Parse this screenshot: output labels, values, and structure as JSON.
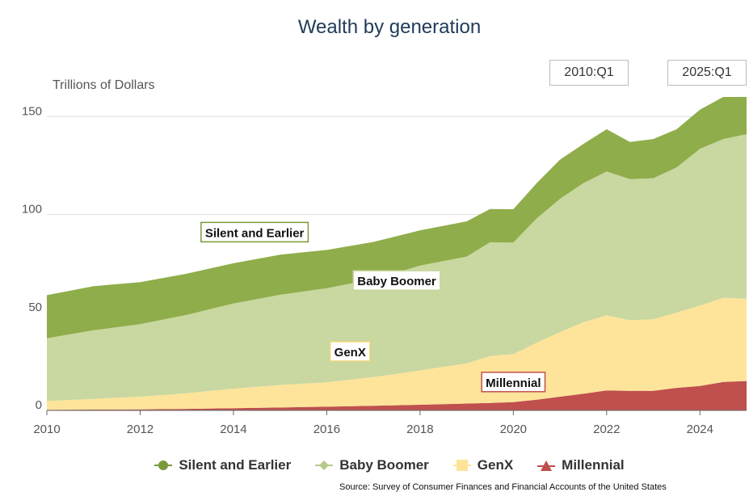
{
  "title": "Wealth by generation",
  "range_controls": {
    "start": "2010:Q1",
    "end": "2025:Q1"
  },
  "source": "Source: Survey of Consumer Finances and Financial Accounts of the United States",
  "chart_data": {
    "type": "area",
    "stacked": true,
    "title": "Wealth by generation",
    "ylabel": "Trillions of Dollars",
    "xlabel": "",
    "xlim": [
      2010,
      2025
    ],
    "ylim": [
      0,
      160
    ],
    "x_ticks": [
      "2010",
      "2012",
      "2014",
      "2016",
      "2018",
      "2020",
      "2022",
      "2024"
    ],
    "y_ticks": [
      "0",
      "50",
      "100",
      "150"
    ],
    "grid": "horizontal",
    "legend_position": "bottom",
    "x": [
      2010,
      2011,
      2012,
      2013,
      2014,
      2015,
      2016,
      2017,
      2018,
      2019,
      2019.5,
      2020,
      2020.5,
      2021,
      2021.5,
      2022,
      2022.5,
      2023,
      2023.5,
      2024,
      2024.5,
      2025
    ],
    "series": [
      {
        "name": "Millennial",
        "color": "#c0504d",
        "icon": "triangle",
        "values": [
          0.3,
          0.4,
          0.5,
          0.8,
          1.1,
          1.5,
          1.9,
          2.4,
          2.9,
          3.5,
          3.8,
          4.2,
          5.5,
          7.0,
          8.5,
          10.2,
          10.0,
          10.0,
          11.5,
          12.5,
          14.5,
          15.0
        ]
      },
      {
        "name": "GenX",
        "color": "#fde49a",
        "icon": "square",
        "values": [
          4.5,
          5.5,
          6.5,
          8.0,
          10.0,
          11.5,
          12.5,
          14.6,
          17.5,
          20.5,
          24.0,
          24.5,
          29.0,
          33.0,
          36.5,
          38.3,
          36.0,
          36.5,
          38.5,
          41.0,
          43.0,
          42.0
        ]
      },
      {
        "name": "Baby Boomer",
        "color": "#c9d7a0",
        "icon": "diamond",
        "values": [
          32.0,
          35.0,
          37.0,
          40.0,
          43.5,
          46.0,
          48.0,
          50.0,
          53.5,
          54.5,
          58.0,
          57.0,
          63.5,
          68.0,
          71.0,
          73.5,
          72.0,
          72.0,
          74.0,
          80.0,
          81.0,
          84.0
        ]
      },
      {
        "name": "Silent and Earlier",
        "color": "#8fad4a",
        "icon": "circle",
        "values": [
          22.0,
          22.5,
          21.5,
          21.0,
          20.5,
          20.5,
          19.5,
          19.0,
          18.0,
          18.0,
          17.0,
          17.0,
          18.0,
          20.0,
          20.0,
          21.5,
          19.0,
          20.0,
          19.5,
          20.0,
          21.5,
          19.0
        ]
      }
    ],
    "annotations": [
      {
        "text": "Silent and Earlier",
        "series": "Silent and Earlier"
      },
      {
        "text": "Baby Boomer",
        "series": "Baby Boomer"
      },
      {
        "text": "GenX",
        "series": "GenX"
      },
      {
        "text": "Millennial",
        "series": "Millennial"
      }
    ]
  }
}
